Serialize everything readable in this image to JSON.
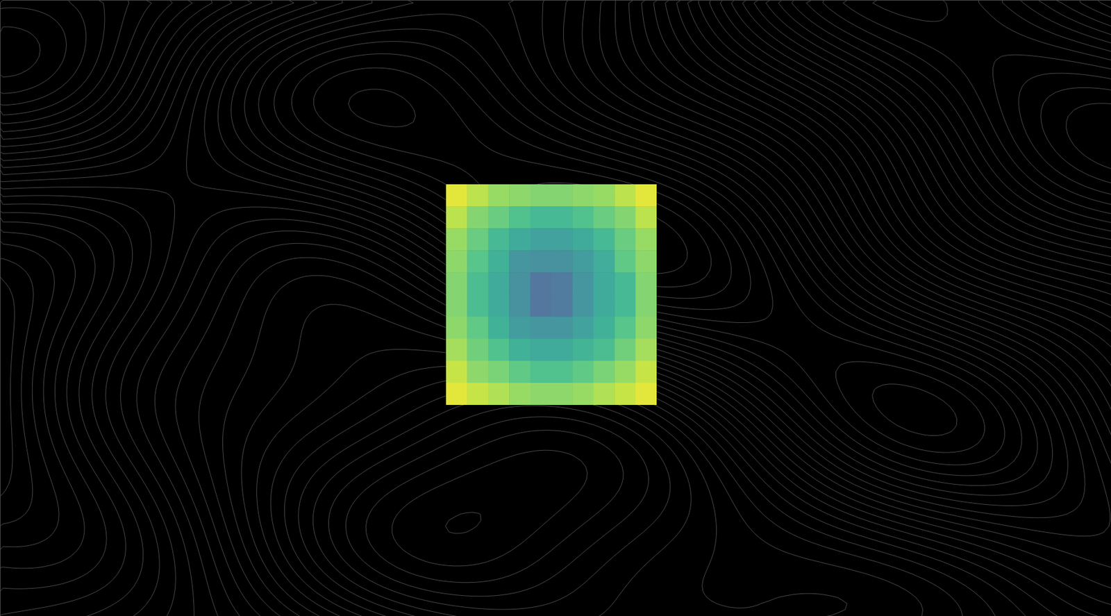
{
  "chart_data": {
    "type": "heatmap",
    "cells": [
      [
        0.95,
        0.88,
        0.82,
        0.8,
        0.78,
        0.78,
        0.8,
        0.82,
        0.88,
        0.95
      ],
      [
        0.88,
        0.78,
        0.72,
        0.66,
        0.62,
        0.62,
        0.66,
        0.72,
        0.78,
        0.88
      ],
      [
        0.82,
        0.72,
        0.62,
        0.55,
        0.5,
        0.5,
        0.55,
        0.62,
        0.72,
        0.82
      ],
      [
        0.8,
        0.68,
        0.58,
        0.45,
        0.42,
        0.42,
        0.48,
        0.56,
        0.7,
        0.8
      ],
      [
        0.78,
        0.64,
        0.55,
        0.42,
        0.3,
        0.32,
        0.45,
        0.55,
        0.62,
        0.78
      ],
      [
        0.78,
        0.64,
        0.55,
        0.42,
        0.3,
        0.32,
        0.45,
        0.55,
        0.62,
        0.78
      ],
      [
        0.8,
        0.7,
        0.58,
        0.48,
        0.45,
        0.45,
        0.5,
        0.58,
        0.68,
        0.8
      ],
      [
        0.84,
        0.74,
        0.66,
        0.58,
        0.55,
        0.55,
        0.6,
        0.64,
        0.74,
        0.84
      ],
      [
        0.9,
        0.8,
        0.76,
        0.7,
        0.66,
        0.66,
        0.7,
        0.76,
        0.82,
        0.9
      ],
      [
        0.95,
        0.9,
        0.86,
        0.82,
        0.8,
        0.8,
        0.82,
        0.86,
        0.9,
        0.95
      ]
    ],
    "zlim": [
      0,
      1
    ],
    "tick_labels": false
  }
}
